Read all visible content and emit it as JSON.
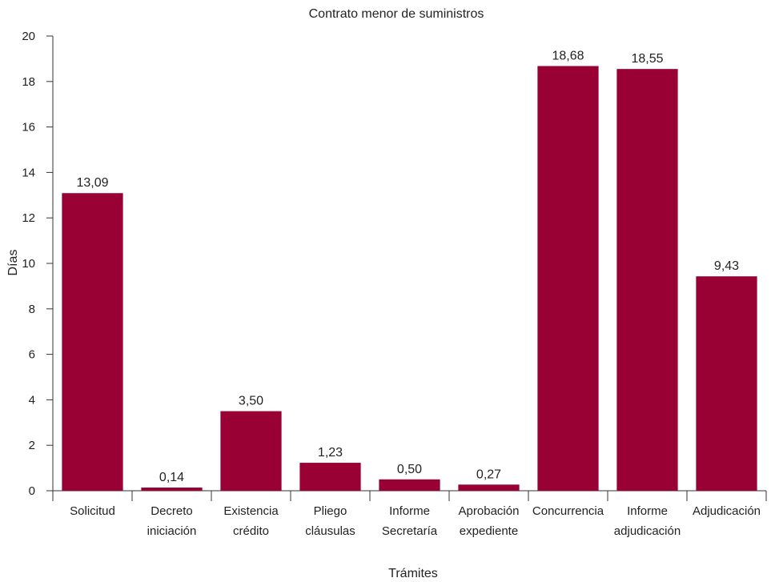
{
  "chart_data": {
    "type": "bar",
    "title": "Contrato menor de suministros",
    "xlabel": "Trámites",
    "ylabel": "Días",
    "ylim": [
      0,
      20
    ],
    "yticks": [
      0,
      2,
      4,
      6,
      8,
      10,
      12,
      14,
      16,
      18,
      20
    ],
    "categories": [
      [
        "Solicitud"
      ],
      [
        "Decreto",
        "iniciación"
      ],
      [
        "Existencia",
        "crédito"
      ],
      [
        "Pliego",
        "cláusulas"
      ],
      [
        "Informe",
        "Secretaría"
      ],
      [
        "Aprobación",
        "expediente"
      ],
      [
        "Concurrencia"
      ],
      [
        "Informe",
        "adjudicación"
      ],
      [
        "Adjudicación"
      ]
    ],
    "values": [
      13.09,
      0.14,
      3.5,
      1.23,
      0.5,
      0.27,
      18.68,
      18.55,
      9.43
    ],
    "data_labels": [
      "13,09",
      "0,14",
      "3,50",
      "1,23",
      "0,50",
      "0,27",
      "18,68",
      "18,55",
      "9,43"
    ],
    "grid": false,
    "legend": "none",
    "bar_color": "#990033"
  }
}
